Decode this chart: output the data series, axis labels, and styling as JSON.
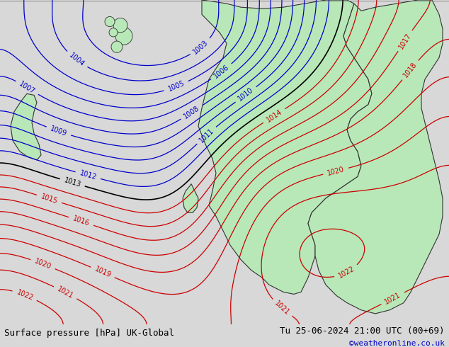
{
  "title_left": "Surface pressure [hPa] UK-Global",
  "title_right": "Tu 25-06-2024 21:00 UTC (00+69)",
  "copyright": "©weatheronline.co.uk",
  "bg_color": "#d8d8d8",
  "land_color": "#b8e8b8",
  "sea_color": "#e8e8e8",
  "blue_contour_color": "#0000cc",
  "red_contour_color": "#cc0000",
  "black_contour_color": "#000000",
  "bottom_bar_color": "#e0e0e8",
  "bottom_text_color": "#000000",
  "copyright_color": "#0000cc",
  "figsize": [
    6.34,
    4.9
  ],
  "dpi": 100,
  "pressure_min": 1005,
  "pressure_max": 1022,
  "pressure_step": 1,
  "label_fontsize": 7,
  "title_fontsize": 9
}
